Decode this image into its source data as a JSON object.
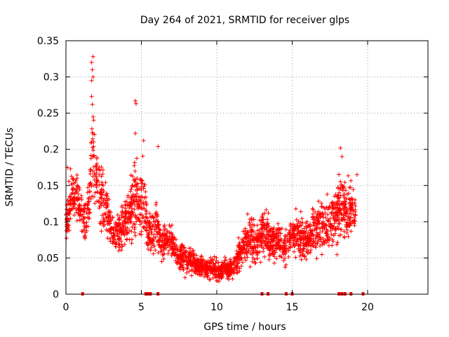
{
  "chart_data": {
    "type": "scatter",
    "title": "Day 264 of 2021, SRMTID for receiver glps",
    "xlabel": "GPS time / hours",
    "ylabel": "SRMTID / TECUs",
    "xlim": [
      0,
      24
    ],
    "ylim": [
      0,
      0.35
    ],
    "xticks": [
      0,
      5,
      10,
      15,
      20
    ],
    "xtick_labels": [
      "0",
      "5",
      "10",
      "15",
      "20"
    ],
    "yticks": [
      0,
      0.05,
      0.1,
      0.15,
      0.2,
      0.25,
      0.3,
      0.35
    ],
    "ytick_labels": [
      "0",
      "0.05",
      "0.1",
      "0.15",
      "0.2",
      "0.25",
      "0.3",
      "0.35"
    ],
    "grid": true,
    "marker": "+",
    "colors": {
      "points": "#ff0000",
      "grid": "#a0a0a0",
      "axes": "#000000"
    },
    "series": [
      {
        "name": "SRMTID",
        "envelope": {
          "x": [
            0.0,
            0.3,
            0.6,
            0.9,
            1.2,
            1.5,
            1.8,
            2.1,
            2.4,
            2.7,
            3.0,
            3.3,
            3.6,
            3.9,
            4.2,
            4.5,
            4.8,
            5.1,
            5.4,
            5.7,
            6.0,
            6.3,
            6.6,
            6.9,
            7.2,
            7.5,
            7.8,
            8.1,
            8.4,
            8.7,
            9.0,
            9.3,
            9.6,
            9.9,
            10.2,
            10.5,
            10.8,
            11.1,
            11.4,
            11.7,
            12.0,
            12.3,
            12.6,
            12.9,
            13.2,
            13.5,
            13.8,
            14.1,
            14.4,
            14.7,
            15.0,
            15.3,
            15.6,
            15.9,
            16.2,
            16.5,
            16.8,
            17.1,
            17.4,
            17.7,
            18.0,
            18.3,
            18.6,
            18.9,
            19.2
          ],
          "center": [
            0.1,
            0.13,
            0.14,
            0.12,
            0.1,
            0.12,
            0.2,
            0.15,
            0.13,
            0.12,
            0.09,
            0.08,
            0.09,
            0.1,
            0.11,
            0.14,
            0.12,
            0.13,
            0.09,
            0.08,
            0.1,
            0.07,
            0.07,
            0.08,
            0.06,
            0.05,
            0.05,
            0.05,
            0.045,
            0.04,
            0.04,
            0.035,
            0.035,
            0.035,
            0.03,
            0.035,
            0.035,
            0.035,
            0.05,
            0.07,
            0.075,
            0.08,
            0.07,
            0.08,
            0.09,
            0.075,
            0.07,
            0.08,
            0.06,
            0.075,
            0.085,
            0.08,
            0.08,
            0.07,
            0.08,
            0.09,
            0.1,
            0.095,
            0.09,
            0.1,
            0.12,
            0.12,
            0.11,
            0.12,
            0.11
          ],
          "spread": [
            0.03,
            0.04,
            0.04,
            0.03,
            0.03,
            0.04,
            0.08,
            0.05,
            0.05,
            0.04,
            0.03,
            0.03,
            0.03,
            0.04,
            0.04,
            0.06,
            0.05,
            0.05,
            0.04,
            0.03,
            0.04,
            0.03,
            0.025,
            0.025,
            0.02,
            0.02,
            0.02,
            0.02,
            0.018,
            0.015,
            0.015,
            0.015,
            0.015,
            0.015,
            0.015,
            0.015,
            0.015,
            0.015,
            0.02,
            0.03,
            0.03,
            0.04,
            0.03,
            0.03,
            0.04,
            0.03,
            0.03,
            0.03,
            0.025,
            0.03,
            0.03,
            0.03,
            0.03,
            0.03,
            0.03,
            0.04,
            0.04,
            0.04,
            0.035,
            0.04,
            0.05,
            0.05,
            0.04,
            0.04,
            0.03
          ]
        },
        "extremes": [
          {
            "x": 1.8,
            "y": 0.328
          },
          {
            "x": 1.7,
            "y": 0.32
          },
          {
            "x": 1.75,
            "y": 0.31
          },
          {
            "x": 1.7,
            "y": 0.295
          },
          {
            "x": 1.8,
            "y": 0.3
          },
          {
            "x": 1.7,
            "y": 0.273
          },
          {
            "x": 1.75,
            "y": 0.262
          },
          {
            "x": 1.8,
            "y": 0.245
          },
          {
            "x": 4.6,
            "y": 0.267
          },
          {
            "x": 4.65,
            "y": 0.263
          },
          {
            "x": 4.6,
            "y": 0.222
          },
          {
            "x": 5.15,
            "y": 0.212
          },
          {
            "x": 6.1,
            "y": 0.204
          },
          {
            "x": 18.2,
            "y": 0.202
          },
          {
            "x": 18.3,
            "y": 0.19
          },
          {
            "x": 0.1,
            "y": 0.175
          },
          {
            "x": 19.3,
            "y": 0.165
          }
        ],
        "zero_values_x": [
          1.1,
          5.3,
          5.4,
          5.5,
          5.6,
          6.1,
          13.0,
          13.4,
          14.6,
          15.0,
          18.1,
          18.3,
          18.5,
          18.9,
          19.7
        ]
      }
    ]
  }
}
